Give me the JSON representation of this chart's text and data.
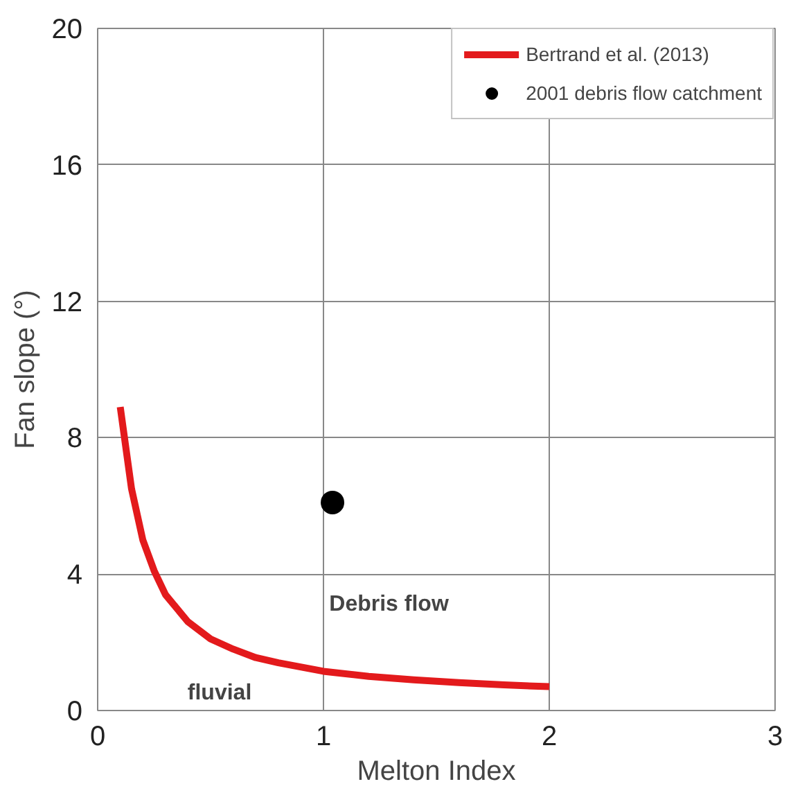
{
  "chart_data": {
    "type": "line",
    "xlabel": "Melton Index",
    "ylabel": "Fan slope (°)",
    "xlim": [
      0,
      3
    ],
    "ylim": [
      0,
      20
    ],
    "xticks": [
      0,
      1,
      2,
      3
    ],
    "yticks": [
      0,
      4,
      8,
      12,
      16,
      20
    ],
    "grid": true,
    "legend": "top right",
    "series": [
      {
        "name": "Bertrand et al. (2013)",
        "color": "#e31a1c",
        "x": [
          0.1,
          0.15,
          0.2,
          0.25,
          0.3,
          0.4,
          0.5,
          0.6,
          0.7,
          0.8,
          1.0,
          1.2,
          1.4,
          1.6,
          1.8,
          2.0
        ],
        "values": [
          8.9,
          6.5,
          5.0,
          4.1,
          3.4,
          2.6,
          2.1,
          1.8,
          1.55,
          1.4,
          1.15,
          1.0,
          0.9,
          0.82,
          0.75,
          0.7
        ]
      },
      {
        "name": "2001 debris flow catchment",
        "type": "scatter",
        "marker": "circle",
        "color": "#000000",
        "x": [
          1.04
        ],
        "values": [
          6.1
        ]
      }
    ],
    "annotations": [
      "Debris flow",
      "fluvial"
    ]
  }
}
